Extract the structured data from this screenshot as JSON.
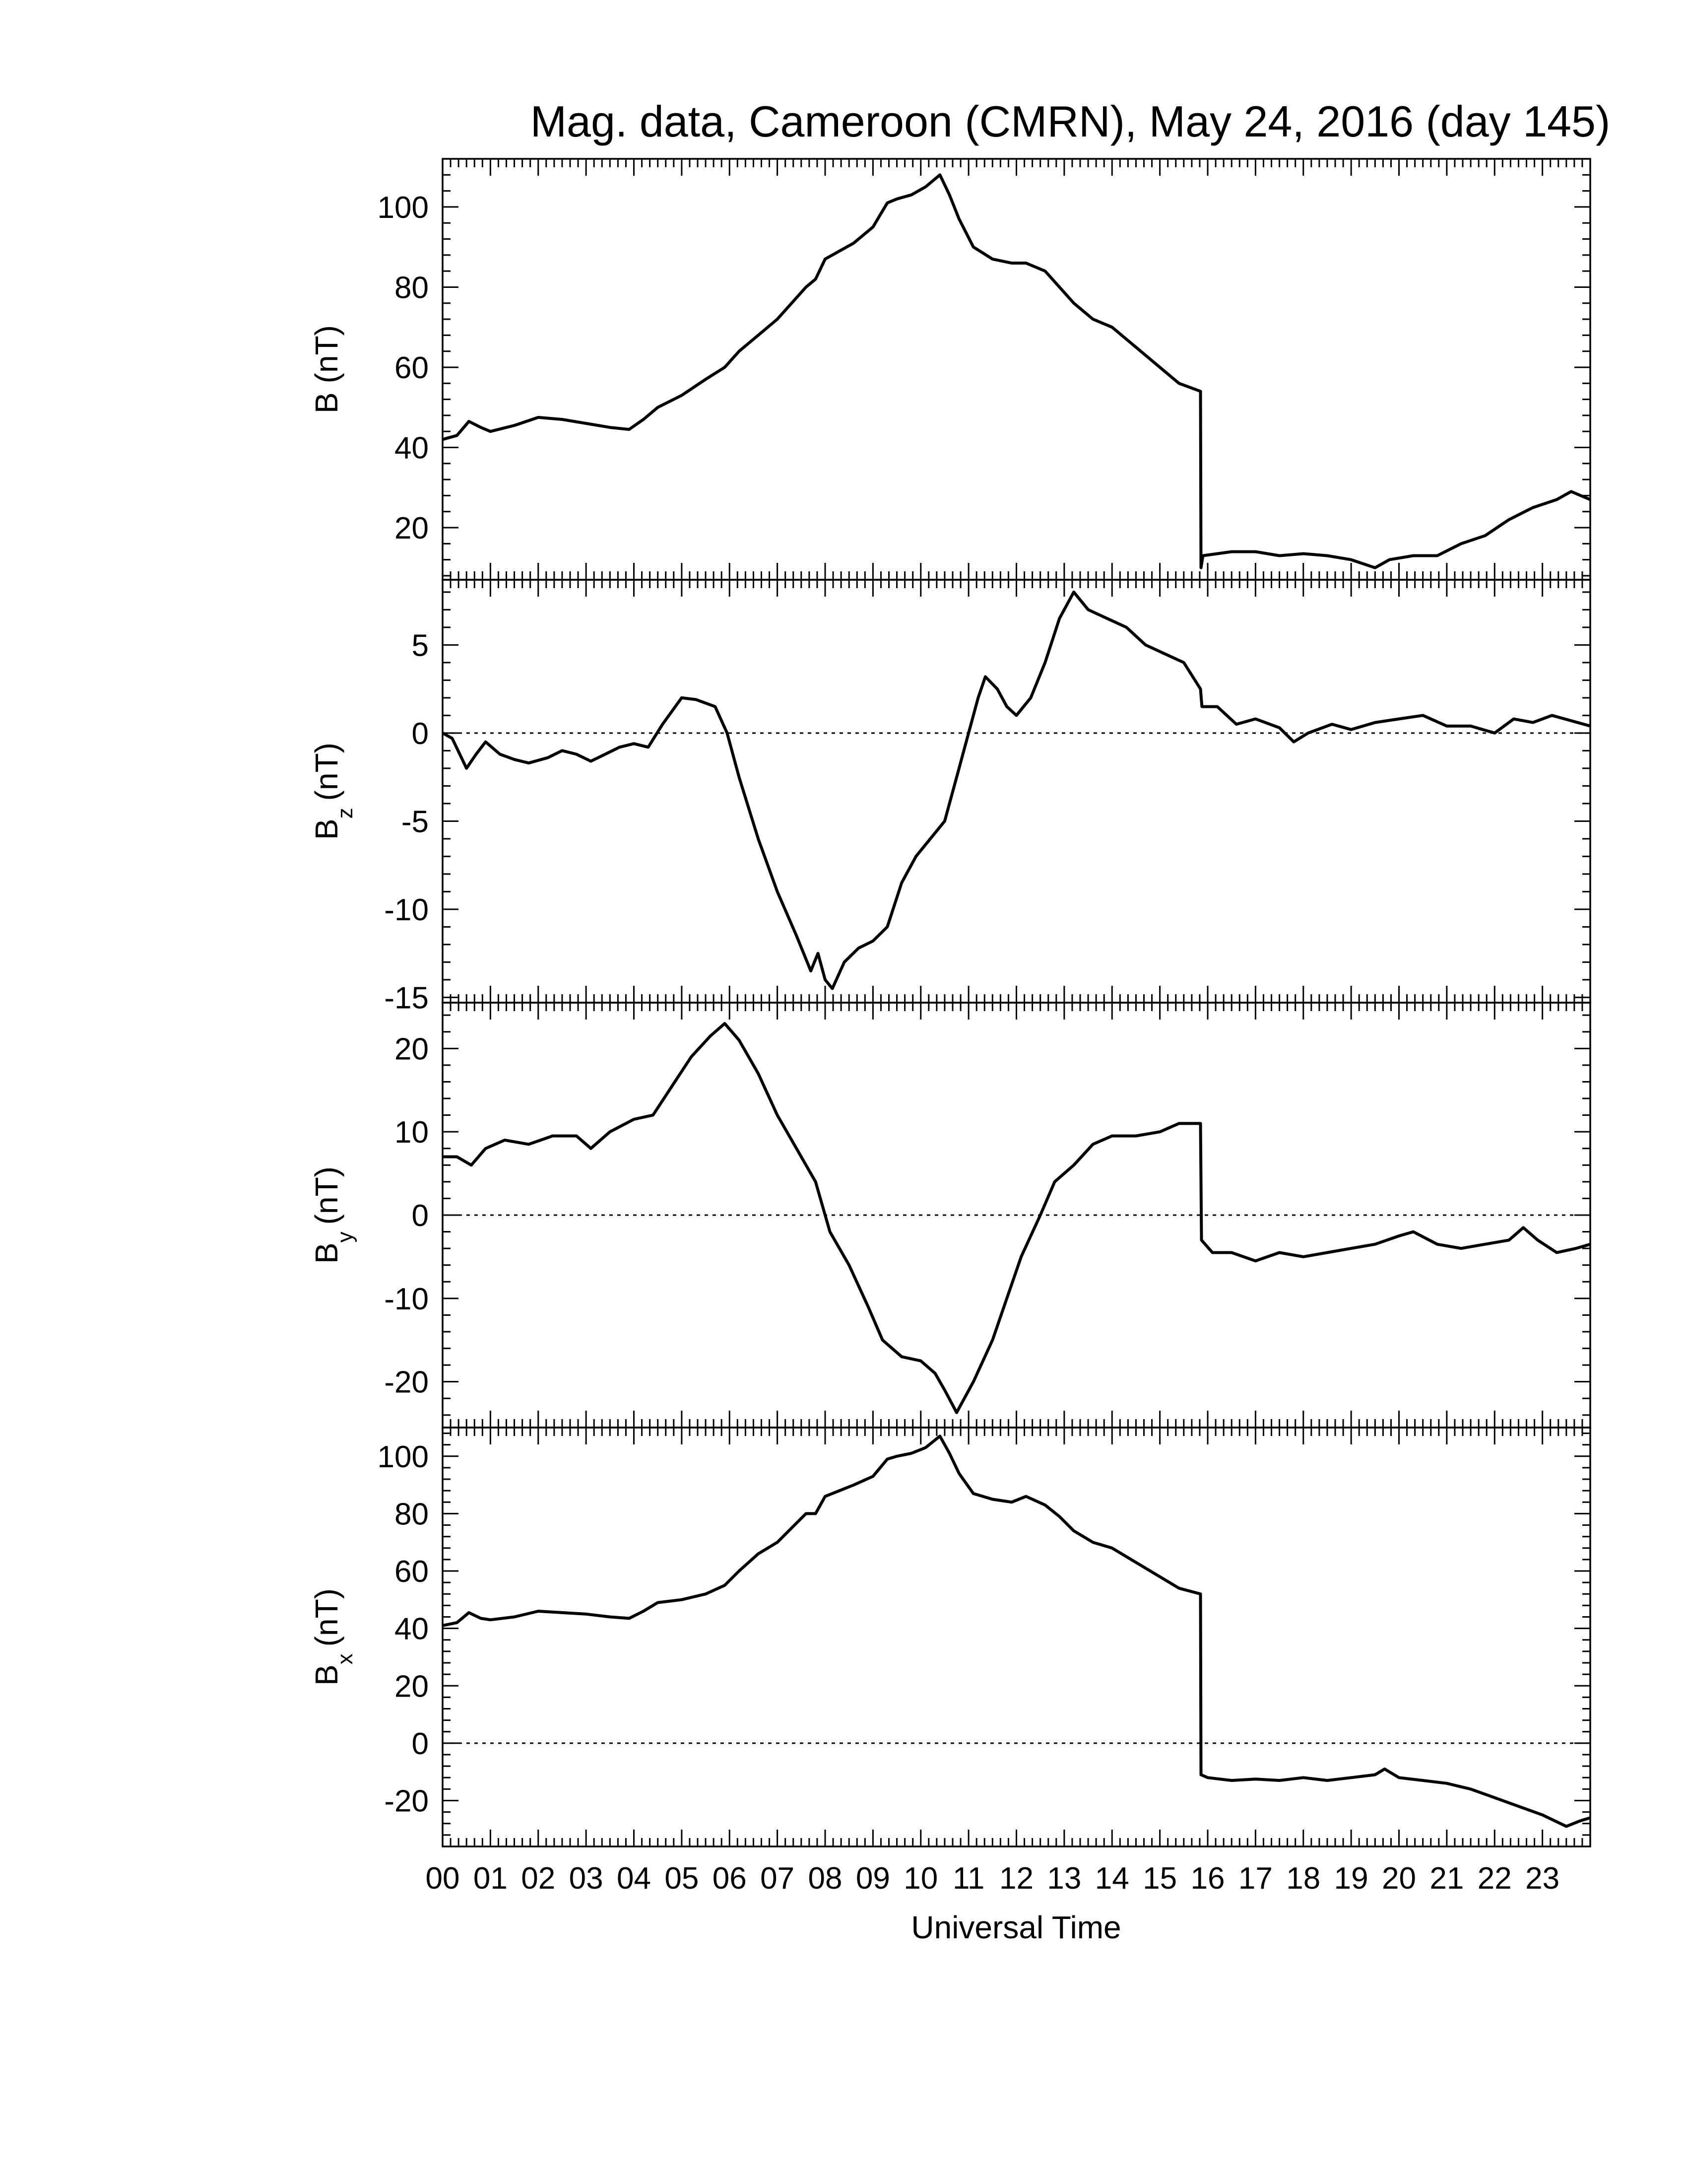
{
  "chart_data": {
    "type": "line",
    "title": "Mag. data, Cameroon (CMRN), May 24, 2016 (day 145)",
    "xlabel": "Universal Time",
    "x_ticks": [
      "00",
      "01",
      "02",
      "03",
      "04",
      "05",
      "06",
      "07",
      "08",
      "09",
      "10",
      "11",
      "12",
      "13",
      "14",
      "15",
      "16",
      "17",
      "18",
      "19",
      "20",
      "21",
      "22",
      "23"
    ],
    "xlim": [
      0,
      24
    ],
    "panels": [
      {
        "id": "b",
        "ylabel_main": "B",
        "ylabel_sub": "",
        "ylabel_unit": "(nT)",
        "ylim": [
          7,
          112
        ],
        "yticks": [
          20,
          40,
          60,
          80,
          100
        ],
        "zero_line": false,
        "series": [
          [
            0.0,
            42
          ],
          [
            0.3,
            43
          ],
          [
            0.55,
            46.5
          ],
          [
            0.8,
            45
          ],
          [
            1.0,
            44
          ],
          [
            1.5,
            45.5
          ],
          [
            2.0,
            47.5
          ],
          [
            2.5,
            47
          ],
          [
            3.0,
            46
          ],
          [
            3.5,
            45
          ],
          [
            3.9,
            44.5
          ],
          [
            4.2,
            47
          ],
          [
            4.5,
            50
          ],
          [
            5.0,
            53
          ],
          [
            5.5,
            57
          ],
          [
            5.9,
            60
          ],
          [
            6.2,
            64
          ],
          [
            6.6,
            68
          ],
          [
            7.0,
            72
          ],
          [
            7.3,
            76
          ],
          [
            7.6,
            80
          ],
          [
            7.8,
            82
          ],
          [
            8.0,
            87
          ],
          [
            8.3,
            89
          ],
          [
            8.6,
            91
          ],
          [
            9.0,
            95
          ],
          [
            9.3,
            101
          ],
          [
            9.5,
            102
          ],
          [
            9.8,
            103
          ],
          [
            10.1,
            105
          ],
          [
            10.4,
            108
          ],
          [
            10.6,
            103
          ],
          [
            10.8,
            97
          ],
          [
            11.1,
            90
          ],
          [
            11.5,
            87
          ],
          [
            11.9,
            86
          ],
          [
            12.2,
            86
          ],
          [
            12.6,
            84
          ],
          [
            12.9,
            80
          ],
          [
            13.2,
            76
          ],
          [
            13.6,
            72
          ],
          [
            14.0,
            70
          ],
          [
            14.4,
            66
          ],
          [
            14.9,
            61
          ],
          [
            15.4,
            56
          ],
          [
            15.85,
            54
          ],
          [
            15.86,
            10
          ],
          [
            15.9,
            13
          ],
          [
            16.5,
            14
          ],
          [
            17.0,
            14
          ],
          [
            17.5,
            13
          ],
          [
            18.0,
            13.5
          ],
          [
            18.5,
            13
          ],
          [
            19.0,
            12
          ],
          [
            19.5,
            10
          ],
          [
            19.8,
            12
          ],
          [
            20.3,
            13
          ],
          [
            20.8,
            13
          ],
          [
            21.3,
            16
          ],
          [
            21.8,
            18
          ],
          [
            22.3,
            22
          ],
          [
            22.8,
            25
          ],
          [
            23.3,
            27
          ],
          [
            23.6,
            29
          ],
          [
            24.0,
            27
          ]
        ]
      },
      {
        "id": "bz",
        "ylabel_main": "B",
        "ylabel_sub": "z",
        "ylabel_unit": "(nT)",
        "ylim": [
          -15.3,
          8.7
        ],
        "yticks": [
          -15,
          -10,
          -5,
          0,
          5
        ],
        "zero_line": true,
        "series": [
          [
            0.0,
            0
          ],
          [
            0.2,
            -0.3
          ],
          [
            0.5,
            -2
          ],
          [
            0.7,
            -1.2
          ],
          [
            0.9,
            -0.5
          ],
          [
            1.2,
            -1.2
          ],
          [
            1.5,
            -1.5
          ],
          [
            1.8,
            -1.7
          ],
          [
            2.2,
            -1.4
          ],
          [
            2.5,
            -1
          ],
          [
            2.8,
            -1.2
          ],
          [
            3.1,
            -1.6
          ],
          [
            3.4,
            -1.2
          ],
          [
            3.7,
            -0.8
          ],
          [
            4.0,
            -0.6
          ],
          [
            4.3,
            -0.8
          ],
          [
            4.6,
            0.5
          ],
          [
            5.0,
            2
          ],
          [
            5.3,
            1.9
          ],
          [
            5.7,
            1.5
          ],
          [
            5.95,
            0
          ],
          [
            6.2,
            -2.5
          ],
          [
            6.6,
            -6
          ],
          [
            7.0,
            -9
          ],
          [
            7.4,
            -11.5
          ],
          [
            7.7,
            -13.5
          ],
          [
            7.85,
            -12.5
          ],
          [
            8.0,
            -14
          ],
          [
            8.15,
            -14.5
          ],
          [
            8.4,
            -13
          ],
          [
            8.7,
            -12.2
          ],
          [
            9.0,
            -11.8
          ],
          [
            9.3,
            -11
          ],
          [
            9.6,
            -8.5
          ],
          [
            9.9,
            -7
          ],
          [
            10.2,
            -6
          ],
          [
            10.5,
            -5
          ],
          [
            10.8,
            -2
          ],
          [
            11.0,
            0
          ],
          [
            11.2,
            2
          ],
          [
            11.35,
            3.2
          ],
          [
            11.6,
            2.5
          ],
          [
            11.8,
            1.5
          ],
          [
            12.0,
            1
          ],
          [
            12.3,
            2
          ],
          [
            12.6,
            4
          ],
          [
            12.9,
            6.5
          ],
          [
            13.2,
            8
          ],
          [
            13.5,
            7
          ],
          [
            13.9,
            6.5
          ],
          [
            14.3,
            6
          ],
          [
            14.7,
            5
          ],
          [
            15.1,
            4.5
          ],
          [
            15.5,
            4
          ],
          [
            15.85,
            2.5
          ],
          [
            15.88,
            1.5
          ],
          [
            16.2,
            1.5
          ],
          [
            16.6,
            0.5
          ],
          [
            17.0,
            0.8
          ],
          [
            17.5,
            0.3
          ],
          [
            17.8,
            -0.5
          ],
          [
            18.1,
            0
          ],
          [
            18.6,
            0.5
          ],
          [
            19.0,
            0.2
          ],
          [
            19.5,
            0.6
          ],
          [
            20.0,
            0.8
          ],
          [
            20.5,
            1
          ],
          [
            21.0,
            0.4
          ],
          [
            21.5,
            0.4
          ],
          [
            22.0,
            0
          ],
          [
            22.4,
            0.8
          ],
          [
            22.8,
            0.6
          ],
          [
            23.2,
            1
          ],
          [
            23.6,
            0.7
          ],
          [
            24.0,
            0.4
          ]
        ]
      },
      {
        "id": "by",
        "ylabel_main": "B",
        "ylabel_sub": "y",
        "ylabel_unit": "(nT)",
        "ylim": [
          -25.5,
          25.5
        ],
        "yticks": [
          -20,
          -10,
          0,
          10,
          20
        ],
        "zero_line": true,
        "series": [
          [
            0.0,
            7
          ],
          [
            0.3,
            7
          ],
          [
            0.6,
            6
          ],
          [
            0.9,
            8
          ],
          [
            1.3,
            9
          ],
          [
            1.8,
            8.5
          ],
          [
            2.3,
            9.5
          ],
          [
            2.8,
            9.5
          ],
          [
            3.1,
            8
          ],
          [
            3.5,
            10
          ],
          [
            4.0,
            11.5
          ],
          [
            4.4,
            12
          ],
          [
            4.8,
            15.5
          ],
          [
            5.2,
            19
          ],
          [
            5.6,
            21.5
          ],
          [
            5.9,
            23
          ],
          [
            6.2,
            21
          ],
          [
            6.6,
            17
          ],
          [
            7.0,
            12
          ],
          [
            7.4,
            8
          ],
          [
            7.8,
            4
          ],
          [
            8.1,
            -2
          ],
          [
            8.5,
            -6
          ],
          [
            8.9,
            -11
          ],
          [
            9.2,
            -15
          ],
          [
            9.6,
            -17
          ],
          [
            10.0,
            -17.5
          ],
          [
            10.3,
            -19
          ],
          [
            10.5,
            -21
          ],
          [
            10.75,
            -23.7
          ],
          [
            11.1,
            -20
          ],
          [
            11.5,
            -15
          ],
          [
            11.8,
            -10
          ],
          [
            12.1,
            -5
          ],
          [
            12.5,
            0
          ],
          [
            12.8,
            4
          ],
          [
            13.2,
            6
          ],
          [
            13.6,
            8.5
          ],
          [
            14.0,
            9.5
          ],
          [
            14.5,
            9.5
          ],
          [
            15.0,
            10
          ],
          [
            15.4,
            11
          ],
          [
            15.85,
            11
          ],
          [
            15.87,
            -3
          ],
          [
            16.1,
            -4.5
          ],
          [
            16.5,
            -4.5
          ],
          [
            17.0,
            -5.5
          ],
          [
            17.5,
            -4.5
          ],
          [
            18.0,
            -5
          ],
          [
            18.5,
            -4.5
          ],
          [
            19.0,
            -4
          ],
          [
            19.5,
            -3.5
          ],
          [
            20.0,
            -2.5
          ],
          [
            20.3,
            -2
          ],
          [
            20.8,
            -3.5
          ],
          [
            21.3,
            -4
          ],
          [
            21.8,
            -3.5
          ],
          [
            22.3,
            -3
          ],
          [
            22.6,
            -1.5
          ],
          [
            22.9,
            -3
          ],
          [
            23.3,
            -4.5
          ],
          [
            23.7,
            -4
          ],
          [
            24.0,
            -3.5
          ]
        ]
      },
      {
        "id": "bx",
        "ylabel_main": "B",
        "ylabel_sub": "x",
        "ylabel_unit": "(nT)",
        "ylim": [
          -36,
          110
        ],
        "yticks": [
          -20,
          0,
          20,
          40,
          60,
          80,
          100
        ],
        "zero_line": true,
        "series": [
          [
            0.0,
            41
          ],
          [
            0.3,
            42
          ],
          [
            0.55,
            45.5
          ],
          [
            0.8,
            43.5
          ],
          [
            1.0,
            43
          ],
          [
            1.5,
            44
          ],
          [
            2.0,
            46
          ],
          [
            2.5,
            45.5
          ],
          [
            3.0,
            45
          ],
          [
            3.5,
            44
          ],
          [
            3.9,
            43.5
          ],
          [
            4.2,
            46
          ],
          [
            4.5,
            49
          ],
          [
            5.0,
            50
          ],
          [
            5.5,
            52
          ],
          [
            5.9,
            55
          ],
          [
            6.2,
            60
          ],
          [
            6.6,
            66
          ],
          [
            7.0,
            70
          ],
          [
            7.3,
            75
          ],
          [
            7.6,
            80
          ],
          [
            7.8,
            80
          ],
          [
            8.0,
            86
          ],
          [
            8.3,
            88
          ],
          [
            8.6,
            90
          ],
          [
            9.0,
            93
          ],
          [
            9.3,
            99
          ],
          [
            9.5,
            100
          ],
          [
            9.8,
            101
          ],
          [
            10.1,
            103
          ],
          [
            10.4,
            107
          ],
          [
            10.6,
            101
          ],
          [
            10.8,
            94
          ],
          [
            11.1,
            87
          ],
          [
            11.5,
            85
          ],
          [
            11.9,
            84
          ],
          [
            12.2,
            86
          ],
          [
            12.6,
            83
          ],
          [
            12.9,
            79
          ],
          [
            13.2,
            74
          ],
          [
            13.6,
            70
          ],
          [
            14.0,
            68
          ],
          [
            14.4,
            64
          ],
          [
            14.9,
            59
          ],
          [
            15.4,
            54
          ],
          [
            15.85,
            52
          ],
          [
            15.86,
            -11
          ],
          [
            16.0,
            -12
          ],
          [
            16.5,
            -13
          ],
          [
            17.0,
            -12.5
          ],
          [
            17.5,
            -13
          ],
          [
            18.0,
            -12
          ],
          [
            18.5,
            -13
          ],
          [
            19.0,
            -12
          ],
          [
            19.5,
            -11
          ],
          [
            19.7,
            -9
          ],
          [
            20.0,
            -12
          ],
          [
            20.5,
            -13
          ],
          [
            21.0,
            -14
          ],
          [
            21.5,
            -16
          ],
          [
            22.0,
            -19
          ],
          [
            22.5,
            -22
          ],
          [
            23.0,
            -25
          ],
          [
            23.5,
            -29
          ],
          [
            23.8,
            -27
          ],
          [
            24.0,
            -26
          ]
        ]
      }
    ]
  }
}
